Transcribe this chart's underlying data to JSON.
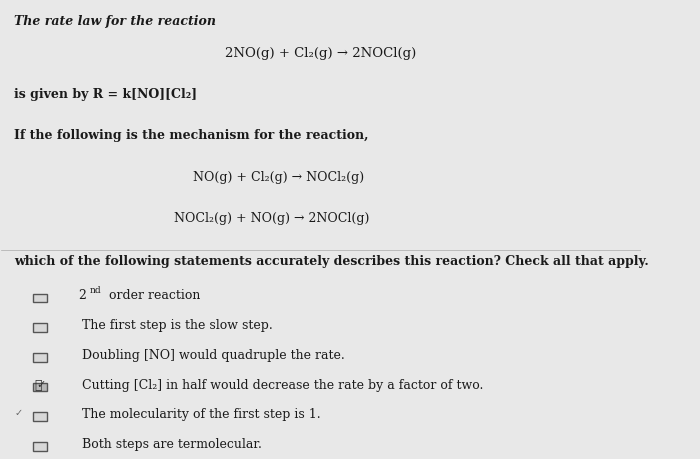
{
  "bg_color": "#e8e8e8",
  "text_color": "#1a1a1a",
  "line1": "The rate law for the reaction",
  "line2": "2NO(g) + Cl₂(g) → 2NOCl(g)",
  "line3": "is given by R = k[NO][Cl₂]",
  "line4": "If the following is the mechanism for the reaction,",
  "line5": "NO(g) + Cl₂(g) → NOCl₂(g)",
  "line6": "NOCl₂(g) + NO(g) → 2NOCl(g)",
  "line7": "which of the following statements accurately describes this reaction? Check all that apply.",
  "checkboxes": [
    {
      "text": " 2nd order reaction",
      "checked": false,
      "superscript": true
    },
    {
      "text": " The first step is the slow step.",
      "checked": false,
      "superscript": false
    },
    {
      "text": " Doubling [NO] would quadruple the rate.",
      "checked": false,
      "superscript": false
    },
    {
      "text": " Cutting [Cl₂] in half would decrease the rate by a factor of two.",
      "checked": true,
      "superscript": false
    },
    {
      "text": " The molecularity of the first step is 1.",
      "checked": false,
      "superscript": false
    },
    {
      "text": " Both steps are termolecular.",
      "checked": false,
      "superscript": false
    }
  ]
}
